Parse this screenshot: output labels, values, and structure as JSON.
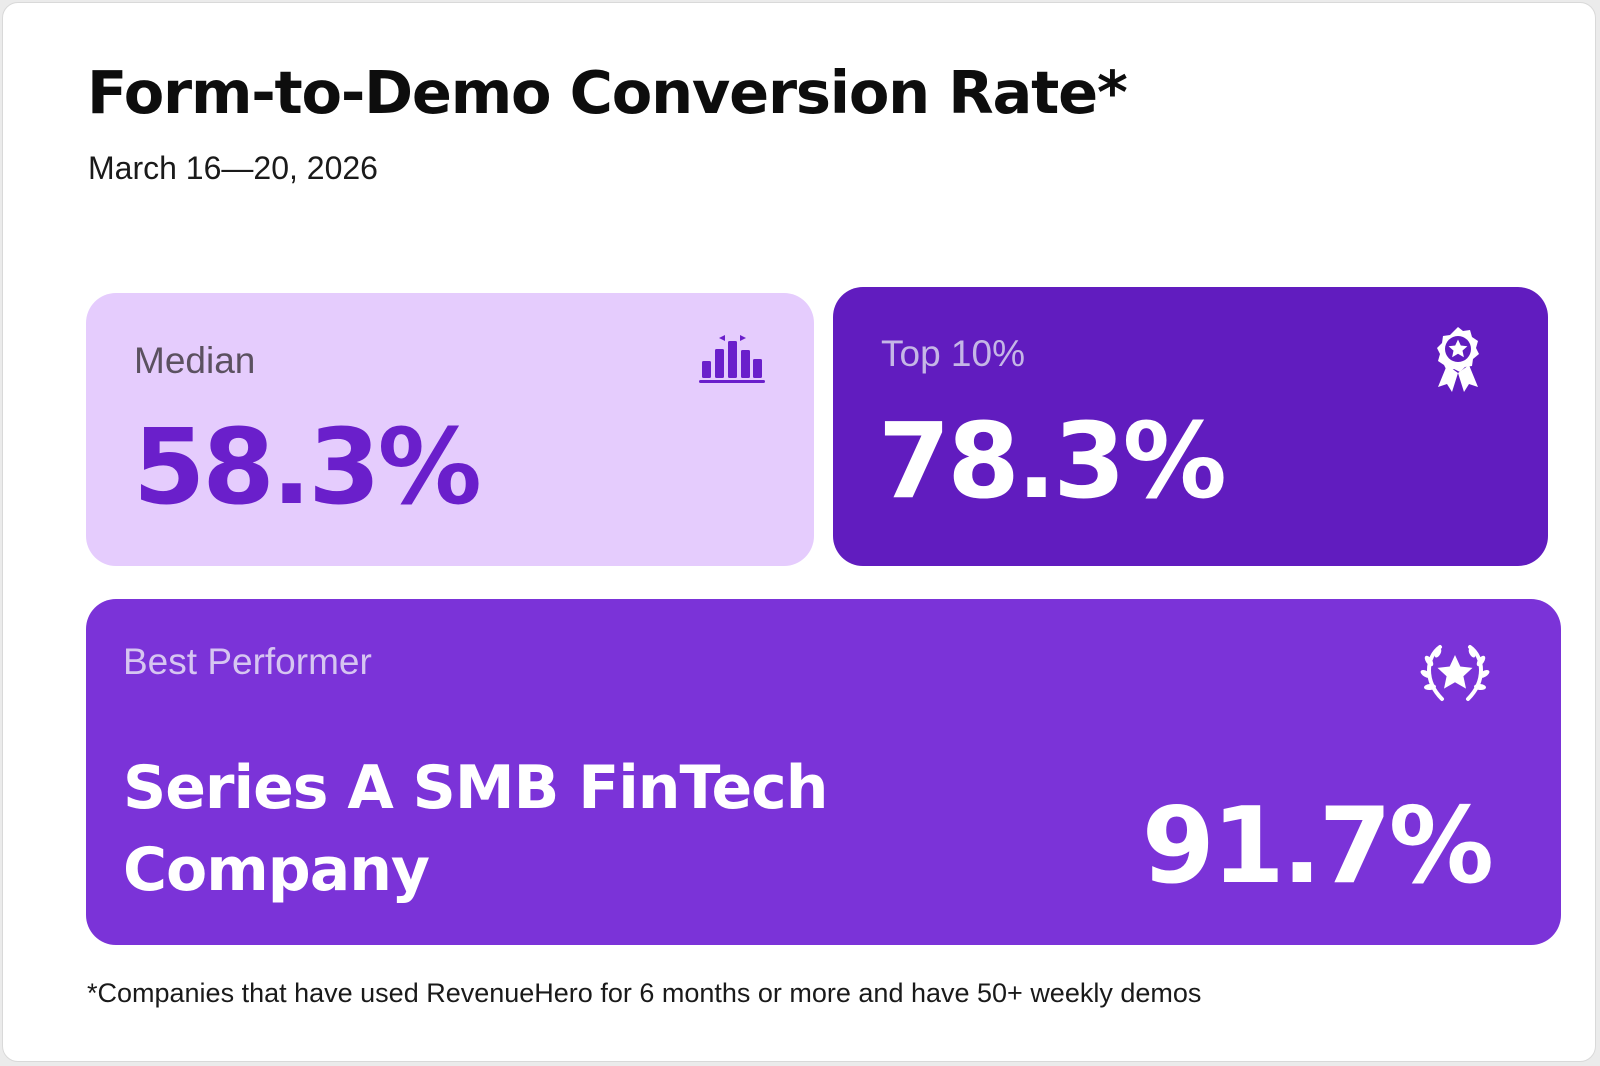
{
  "header": {
    "title": "Form-to-Demo Conversion Rate*",
    "date_range": "March 16—20, 2026"
  },
  "median": {
    "label": "Median",
    "value": "58.3%",
    "icon": "bar-chart-icon"
  },
  "top_10": {
    "label": "Top 10%",
    "value": "78.3%",
    "icon": "award-ribbon-icon"
  },
  "best_performer": {
    "label": "Best Performer",
    "company_line_1": "Series A SMB FinTech",
    "company_line_2": "Company",
    "value": "91.7%",
    "icon": "laurel-star-icon"
  },
  "footnote": "*Companies that have used RevenueHero for 6 months or more and have 50+ weekly demos",
  "colors": {
    "median_bg": "#e5ccfd",
    "median_value": "#6a1fcb",
    "top_bg": "#611cbf",
    "best_bg": "#7b33d8"
  }
}
